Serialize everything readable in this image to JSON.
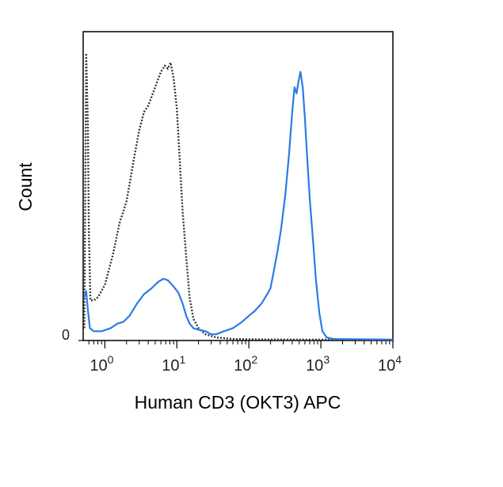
{
  "chart_data": {
    "type": "line",
    "xlabel": "Human CD3 (OKT3) APC",
    "ylabel": "Count",
    "x_scale": "log",
    "xlim": [
      0.5,
      10000
    ],
    "ylim": [
      0,
      100
    ],
    "y_tick_labels": [
      {
        "value": 0,
        "label": "0"
      }
    ],
    "x_tick_labels": [
      {
        "value": 1,
        "base": "10",
        "exp": "0"
      },
      {
        "value": 10,
        "base": "10",
        "exp": "1"
      },
      {
        "value": 100,
        "base": "10",
        "exp": "2"
      },
      {
        "value": 1000,
        "base": "10",
        "exp": "3"
      },
      {
        "value": 10000,
        "base": "10",
        "exp": "4"
      }
    ],
    "grid": false,
    "series": [
      {
        "style": "dotted",
        "color": "#333333",
        "points": [
          [
            0.52,
            4
          ],
          [
            0.55,
            93
          ],
          [
            0.58,
            70
          ],
          [
            0.6,
            35
          ],
          [
            0.63,
            13
          ],
          [
            0.7,
            13
          ],
          [
            0.8,
            14
          ],
          [
            1.0,
            18
          ],
          [
            1.3,
            28
          ],
          [
            1.6,
            38
          ],
          [
            2.0,
            45
          ],
          [
            2.5,
            58
          ],
          [
            3.0,
            68
          ],
          [
            3.5,
            74
          ],
          [
            4.0,
            76
          ],
          [
            5.0,
            82
          ],
          [
            6.0,
            87
          ],
          [
            6.8,
            89
          ],
          [
            7.5,
            88
          ],
          [
            8.2,
            90
          ],
          [
            9.0,
            85
          ],
          [
            10.0,
            75
          ],
          [
            11.0,
            58
          ],
          [
            12.0,
            42
          ],
          [
            13.5,
            27
          ],
          [
            15.0,
            14
          ],
          [
            17.0,
            7
          ],
          [
            20.0,
            4
          ],
          [
            25.0,
            2
          ],
          [
            35.0,
            1
          ],
          [
            60.0,
            0.5
          ],
          [
            200.0,
            0.3
          ],
          [
            10000.0,
            0.2
          ]
        ]
      },
      {
        "style": "solid",
        "color": "#2c7be5",
        "points": [
          [
            0.52,
            14
          ],
          [
            0.55,
            16
          ],
          [
            0.58,
            10
          ],
          [
            0.62,
            4
          ],
          [
            0.7,
            3
          ],
          [
            0.9,
            3
          ],
          [
            1.2,
            4
          ],
          [
            1.5,
            5.5
          ],
          [
            1.8,
            6
          ],
          [
            2.2,
            8
          ],
          [
            2.8,
            12
          ],
          [
            3.5,
            15
          ],
          [
            4.5,
            17
          ],
          [
            5.5,
            19
          ],
          [
            6.5,
            20
          ],
          [
            7.5,
            19.5
          ],
          [
            9.0,
            17.5
          ],
          [
            10.5,
            15.5
          ],
          [
            12.0,
            12
          ],
          [
            13.5,
            8
          ],
          [
            15.0,
            5.5
          ],
          [
            17.0,
            4
          ],
          [
            20.0,
            3.5
          ],
          [
            25.0,
            3
          ],
          [
            30.0,
            2
          ],
          [
            35.0,
            2
          ],
          [
            45.0,
            3
          ],
          [
            60.0,
            4
          ],
          [
            80.0,
            6
          ],
          [
            100.0,
            8
          ],
          [
            120.0,
            9.5
          ],
          [
            150.0,
            12
          ],
          [
            180.0,
            15
          ],
          [
            200.0,
            17
          ],
          [
            220.0,
            22
          ],
          [
            250.0,
            29
          ],
          [
            280.0,
            36
          ],
          [
            320.0,
            47
          ],
          [
            360.0,
            60
          ],
          [
            400.0,
            74
          ],
          [
            430.0,
            82
          ],
          [
            460.0,
            80
          ],
          [
            490.0,
            84
          ],
          [
            520.0,
            87
          ],
          [
            560.0,
            82
          ],
          [
            600.0,
            72
          ],
          [
            650.0,
            58
          ],
          [
            700.0,
            46
          ],
          [
            780.0,
            32
          ],
          [
            850.0,
            20
          ],
          [
            950.0,
            9
          ],
          [
            1050.0,
            3
          ],
          [
            1200.0,
            1
          ],
          [
            1500.0,
            0.5
          ],
          [
            10000.0,
            0.3
          ]
        ]
      }
    ]
  }
}
